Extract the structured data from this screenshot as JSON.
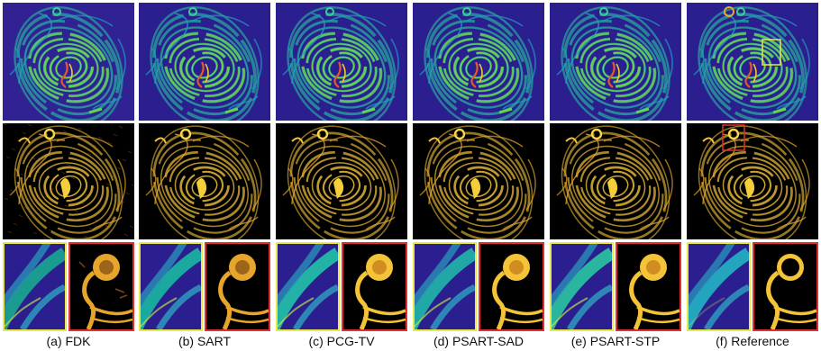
{
  "panels": [
    {
      "caption": "(a) FDK"
    },
    {
      "caption": "(b) SART"
    },
    {
      "caption": "(c) PCG-TV"
    },
    {
      "caption": "(d) PSART-SAD"
    },
    {
      "caption": "(e) PSART-STP"
    },
    {
      "caption": "(f) Reference"
    }
  ],
  "colors": {
    "colormap_background": "#2b1f8f",
    "zoom_box_yellow": "#e8e84a",
    "zoom_box_red": "#e03030",
    "edge_color": "#f3c23a"
  }
}
